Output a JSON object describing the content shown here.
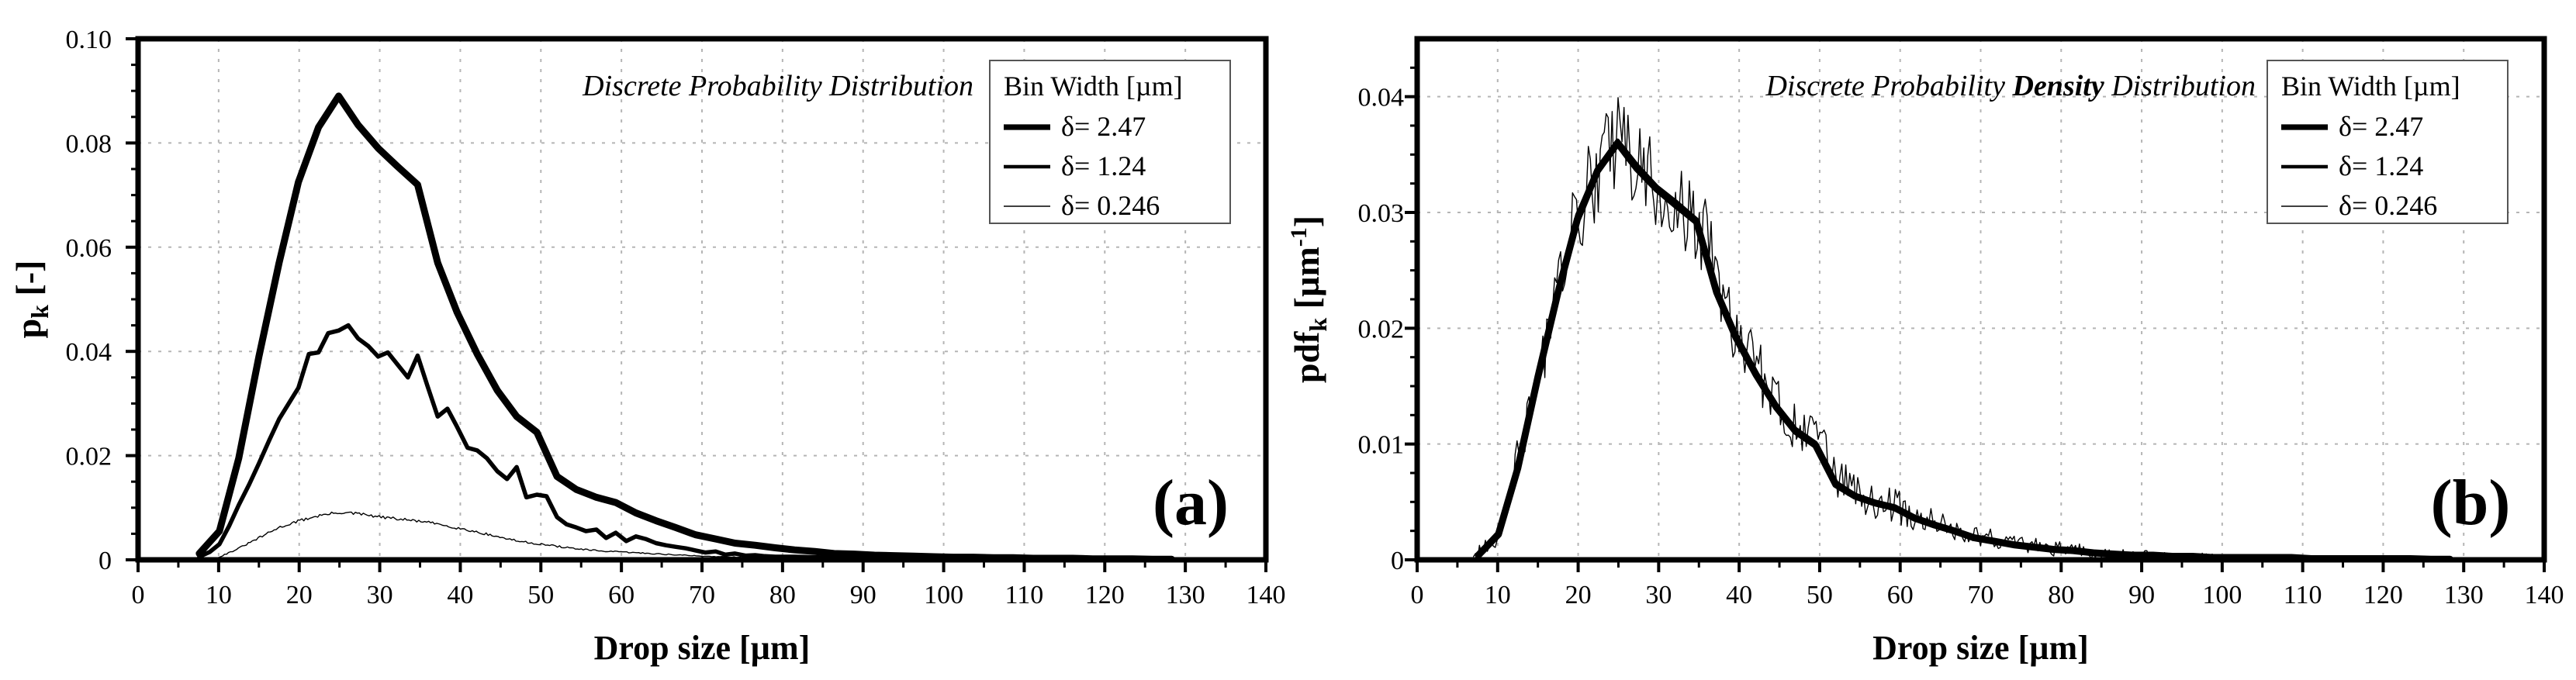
{
  "chart_data": [
    {
      "type": "line",
      "panel_id": "a",
      "panel_label": "(a)",
      "title": "Discrete Probability Distribution",
      "title_parts": [
        {
          "text": "Discrete Probability Distribution",
          "bold": false
        }
      ],
      "xlabel": "Drop size [µm]",
      "ylabel": "p",
      "ylabel_sub": "k",
      "ylabel_tail": " [-]",
      "ylabel_sup": "",
      "ylabel_post": "",
      "xlim": [
        0,
        140
      ],
      "ylim": [
        0,
        0.1
      ],
      "xticks": [
        0,
        10,
        20,
        30,
        40,
        50,
        60,
        70,
        80,
        90,
        100,
        110,
        120,
        130,
        140
      ],
      "xtick_labels": [
        "0",
        "10",
        "20",
        "30",
        "40",
        "50",
        "60",
        "70",
        "80",
        "90",
        "100",
        "110",
        "120",
        "130",
        "140"
      ],
      "yticks": [
        0,
        0.02,
        0.04,
        0.06,
        0.08,
        0.1
      ],
      "ytick_labels": [
        "0",
        "0.02",
        "0.04",
        "0.06",
        "0.08",
        "0.10"
      ],
      "grid": true,
      "legend": {
        "title": "Bin Width [µm]",
        "placement": "top-right",
        "entries": [
          "δ= 2.47",
          "δ= 1.24",
          "δ= 0.246"
        ]
      },
      "series": [
        {
          "name": "δ= 2.47",
          "line_weight": "heavy",
          "x": [
            7.6,
            10.1,
            12.5,
            15.0,
            17.5,
            19.9,
            22.4,
            24.9,
            27.3,
            29.8,
            32.2,
            34.7,
            37.2,
            39.6,
            42.1,
            44.6,
            47.0,
            49.5,
            52.0,
            54.4,
            56.9,
            59.3,
            61.8,
            64.3,
            66.7,
            69.2,
            71.7,
            74.1,
            76.6,
            79.1,
            81.5,
            84.0,
            86.4,
            88.9,
            91.4,
            93.8,
            96.3,
            98.8,
            101.2,
            103.7,
            106.2,
            108.6,
            111.1,
            113.5,
            116.0,
            118.5,
            120.9,
            123.4,
            125.9,
            128.3
          ],
          "y": [
            0.0012,
            0.0055,
            0.0195,
            0.039,
            0.057,
            0.0725,
            0.083,
            0.089,
            0.0835,
            0.079,
            0.0755,
            0.072,
            0.057,
            0.0475,
            0.0395,
            0.0325,
            0.0275,
            0.0245,
            0.016,
            0.0135,
            0.012,
            0.011,
            0.009,
            0.0075,
            0.0062,
            0.0048,
            0.004,
            0.0032,
            0.0028,
            0.0023,
            0.0019,
            0.0016,
            0.0012,
            0.0011,
            0.0009,
            0.0008,
            0.0007,
            0.0006,
            0.0005,
            0.0005,
            0.0004,
            0.0004,
            0.0003,
            0.0003,
            0.0003,
            0.0002,
            0.0002,
            0.0002,
            0.0001,
            0.0001
          ]
        },
        {
          "name": "δ= 1.24",
          "line_weight": "medium",
          "x": [
            7.6,
            8.9,
            10.1,
            11.3,
            12.5,
            13.8,
            15.0,
            16.3,
            17.5,
            18.7,
            19.9,
            21.2,
            22.4,
            23.6,
            24.9,
            26.1,
            27.3,
            28.6,
            29.8,
            31.0,
            32.2,
            33.5,
            34.7,
            35.9,
            37.2,
            38.4,
            39.6,
            40.9,
            42.1,
            43.3,
            44.6,
            45.8,
            47.0,
            48.2,
            49.5,
            50.7,
            52.0,
            53.2,
            54.4,
            55.6,
            56.9,
            58.1,
            59.3,
            60.6,
            61.8,
            63.0,
            64.3,
            65.5,
            66.7,
            68.0,
            69.2,
            70.4,
            71.7,
            72.9,
            74.1,
            75.4,
            76.6,
            77.8,
            79.1,
            81.5,
            84.0,
            86.4,
            88.9,
            91.4,
            93.8,
            96.3,
            98.8,
            101.2,
            103.7,
            106.2,
            108.6,
            111.1,
            113.5,
            116.0,
            118.5,
            120.9,
            123.4,
            125.9,
            128.3
          ],
          "y": [
            0.0006,
            0.0015,
            0.003,
            0.0065,
            0.0105,
            0.0145,
            0.0185,
            0.023,
            0.027,
            0.03,
            0.033,
            0.0395,
            0.0398,
            0.0435,
            0.044,
            0.045,
            0.0425,
            0.041,
            0.039,
            0.0398,
            0.0375,
            0.035,
            0.0392,
            0.0335,
            0.0275,
            0.029,
            0.0255,
            0.0215,
            0.021,
            0.0195,
            0.017,
            0.0155,
            0.0178,
            0.012,
            0.0125,
            0.0122,
            0.0082,
            0.0068,
            0.0062,
            0.0055,
            0.0058,
            0.0042,
            0.0052,
            0.0036,
            0.0045,
            0.004,
            0.0032,
            0.0028,
            0.0025,
            0.0022,
            0.0018,
            0.0014,
            0.0016,
            0.001,
            0.0012,
            0.0008,
            0.0009,
            0.0007,
            0.0006,
            0.0006,
            0.0005,
            0.0004,
            0.0004,
            0.0003,
            0.0003,
            0.0003,
            0.0002,
            0.0002,
            0.0002,
            0.0002,
            0.0002,
            0.0001,
            0.0001,
            0.0001,
            0.0001,
            0.0001,
            0.0001,
            0.0001,
            0.0001
          ]
        },
        {
          "name": "δ= 0.246",
          "line_weight": "thin",
          "x": [
            10.0,
            12.5,
            15.0,
            17.5,
            20.0,
            22.5,
            25.0,
            27.5,
            30.0,
            32.5,
            35.0,
            37.5,
            40.0,
            42.5,
            45.0,
            47.5,
            50.0,
            52.5,
            55.0,
            57.5,
            60.0,
            62.5,
            65.0,
            67.5,
            70.0,
            72.5,
            75.0,
            80.0,
            85.0,
            90.0,
            100.0,
            110.0,
            120.0,
            130.0
          ],
          "y": [
            0.0005,
            0.0022,
            0.0042,
            0.0062,
            0.0075,
            0.0085,
            0.0091,
            0.0088,
            0.0082,
            0.0078,
            0.0074,
            0.0068,
            0.006,
            0.0052,
            0.0043,
            0.0035,
            0.003,
            0.0025,
            0.002,
            0.0017,
            0.0015,
            0.0013,
            0.0011,
            0.0009,
            0.0007,
            0.0006,
            0.0005,
            0.0004,
            0.0003,
            0.0002,
            0.0001,
            0.0001,
            5e-05,
            3e-05
          ],
          "noise": 0.0009,
          "resolution": 0.246
        }
      ]
    },
    {
      "type": "line",
      "panel_id": "b",
      "panel_label": "(b)",
      "title": "Discrete Probability Density Distribution",
      "title_parts": [
        {
          "text": "Discrete Probability ",
          "bold": false
        },
        {
          "text": "Density",
          "bold": true
        },
        {
          "text": " Distribution",
          "bold": false
        }
      ],
      "xlabel": "Drop size [µm]",
      "ylabel": "pdf",
      "ylabel_sub": "k",
      "ylabel_tail": " [µm",
      "ylabel_sup": "-1",
      "ylabel_post": "]",
      "xlim": [
        0,
        140
      ],
      "ylim": [
        0,
        0.045
      ],
      "xticks": [
        0,
        10,
        20,
        30,
        40,
        50,
        60,
        70,
        80,
        90,
        100,
        110,
        120,
        130,
        140
      ],
      "xtick_labels": [
        "0",
        "10",
        "20",
        "30",
        "40",
        "50",
        "60",
        "70",
        "80",
        "90",
        "100",
        "110",
        "120",
        "130",
        "140"
      ],
      "yticks": [
        0,
        0.01,
        0.02,
        0.03,
        0.04
      ],
      "ytick_labels": [
        "0",
        "0.01",
        "0.02",
        "0.03",
        "0.04"
      ],
      "grid": true,
      "legend": {
        "title": "Bin Width [µm]",
        "placement": "top-right",
        "entries": [
          "δ= 2.47",
          "δ= 1.24",
          "δ= 0.246"
        ]
      },
      "series": [
        {
          "name": "δ= 2.47",
          "line_weight": "heavy",
          "x": [
            7.6,
            10.1,
            12.5,
            15.0,
            17.5,
            19.9,
            22.4,
            24.9,
            27.3,
            29.8,
            32.2,
            34.7,
            37.2,
            39.6,
            42.1,
            44.6,
            47.0,
            49.5,
            52.0,
            54.4,
            56.9,
            59.3,
            61.8,
            64.3,
            66.7,
            69.2,
            71.7,
            74.1,
            76.6,
            79.1,
            81.5,
            84.0,
            86.4,
            88.9,
            91.4,
            93.8,
            96.3,
            98.8,
            101.2,
            103.7,
            106.2,
            108.6,
            111.1,
            113.5,
            116.0,
            118.5,
            120.9,
            123.4,
            125.9,
            128.3
          ],
          "y": [
            0.0004,
            0.0022,
            0.0079,
            0.0158,
            0.0231,
            0.0294,
            0.0336,
            0.036,
            0.0338,
            0.032,
            0.0306,
            0.0292,
            0.0231,
            0.0192,
            0.016,
            0.0132,
            0.0111,
            0.0099,
            0.0065,
            0.0055,
            0.0049,
            0.0045,
            0.0036,
            0.003,
            0.0025,
            0.0019,
            0.0016,
            0.0013,
            0.0011,
            0.0009,
            0.0008,
            0.0006,
            0.0005,
            0.0004,
            0.0004,
            0.0003,
            0.0003,
            0.0002,
            0.0002,
            0.0002,
            0.0002,
            0.0002,
            0.0001,
            0.0001,
            0.0001,
            0.0001,
            0.0001,
            0.0001,
            5e-05,
            5e-05
          ]
        },
        {
          "name": "δ= 1.24",
          "line_weight": "medium",
          "x": [
            7.6,
            10.1,
            12.5,
            15.0,
            17.5,
            19.9,
            22.4,
            24.9,
            27.3,
            29.8,
            32.2,
            34.7,
            37.2,
            39.6,
            42.1,
            44.6,
            47.0,
            49.5,
            52.0,
            54.4,
            56.9,
            59.3,
            61.8,
            64.3,
            66.7,
            69.2,
            71.7,
            74.1,
            76.6,
            79.1,
            81.5,
            84.0,
            86.4,
            88.9,
            91.4,
            93.8,
            96.3,
            98.8,
            101.2,
            103.7,
            106.2,
            108.6,
            111.1,
            113.5,
            116.0,
            118.5,
            120.9,
            123.4,
            125.9,
            128.3
          ],
          "y": [
            0.0005,
            0.0024,
            0.0082,
            0.016,
            0.0234,
            0.0298,
            0.0338,
            0.0362,
            0.0341,
            0.0322,
            0.0309,
            0.0294,
            0.0234,
            0.0195,
            0.0162,
            0.0134,
            0.0113,
            0.0101,
            0.0067,
            0.0056,
            0.005,
            0.0046,
            0.0037,
            0.0031,
            0.0026,
            0.002,
            0.0017,
            0.0014,
            0.0012,
            0.001,
            0.0008,
            0.0007,
            0.0005,
            0.0005,
            0.0004,
            0.0003,
            0.0003,
            0.0003,
            0.0002,
            0.0002,
            0.0002,
            0.0002,
            0.0001,
            0.0001,
            0.0001,
            0.0001,
            0.0001,
            0.0001,
            5e-05,
            5e-05
          ]
        },
        {
          "name": "δ= 0.246",
          "line_weight": "thin",
          "x": [
            7.0,
            10.0,
            12.5,
            15.0,
            17.5,
            20.0,
            22.5,
            25.0,
            27.5,
            30.0,
            32.5,
            35.0,
            37.5,
            40.0,
            42.5,
            45.0,
            47.5,
            50.0,
            52.5,
            55.0,
            57.5,
            60.0,
            62.5,
            65.0,
            67.5,
            70.0,
            72.5,
            75.0,
            80.0,
            85.0,
            90.0,
            100.0,
            110.0,
            120.0,
            130.0
          ],
          "y": [
            0.0002,
            0.0022,
            0.0085,
            0.016,
            0.0234,
            0.0298,
            0.0338,
            0.0362,
            0.034,
            0.0321,
            0.0308,
            0.0293,
            0.0235,
            0.0193,
            0.016,
            0.0133,
            0.0113,
            0.0099,
            0.0068,
            0.0056,
            0.005,
            0.0045,
            0.0037,
            0.003,
            0.0025,
            0.002,
            0.0016,
            0.0013,
            0.0009,
            0.0006,
            0.0004,
            0.0002,
            0.0001,
            5e-05,
            3e-05
          ],
          "noise": 0.0042,
          "resolution": 0.246
        }
      ]
    }
  ],
  "colors": {
    "line": "#000000",
    "grid": "#b5b5b5",
    "background": "#ffffff"
  }
}
